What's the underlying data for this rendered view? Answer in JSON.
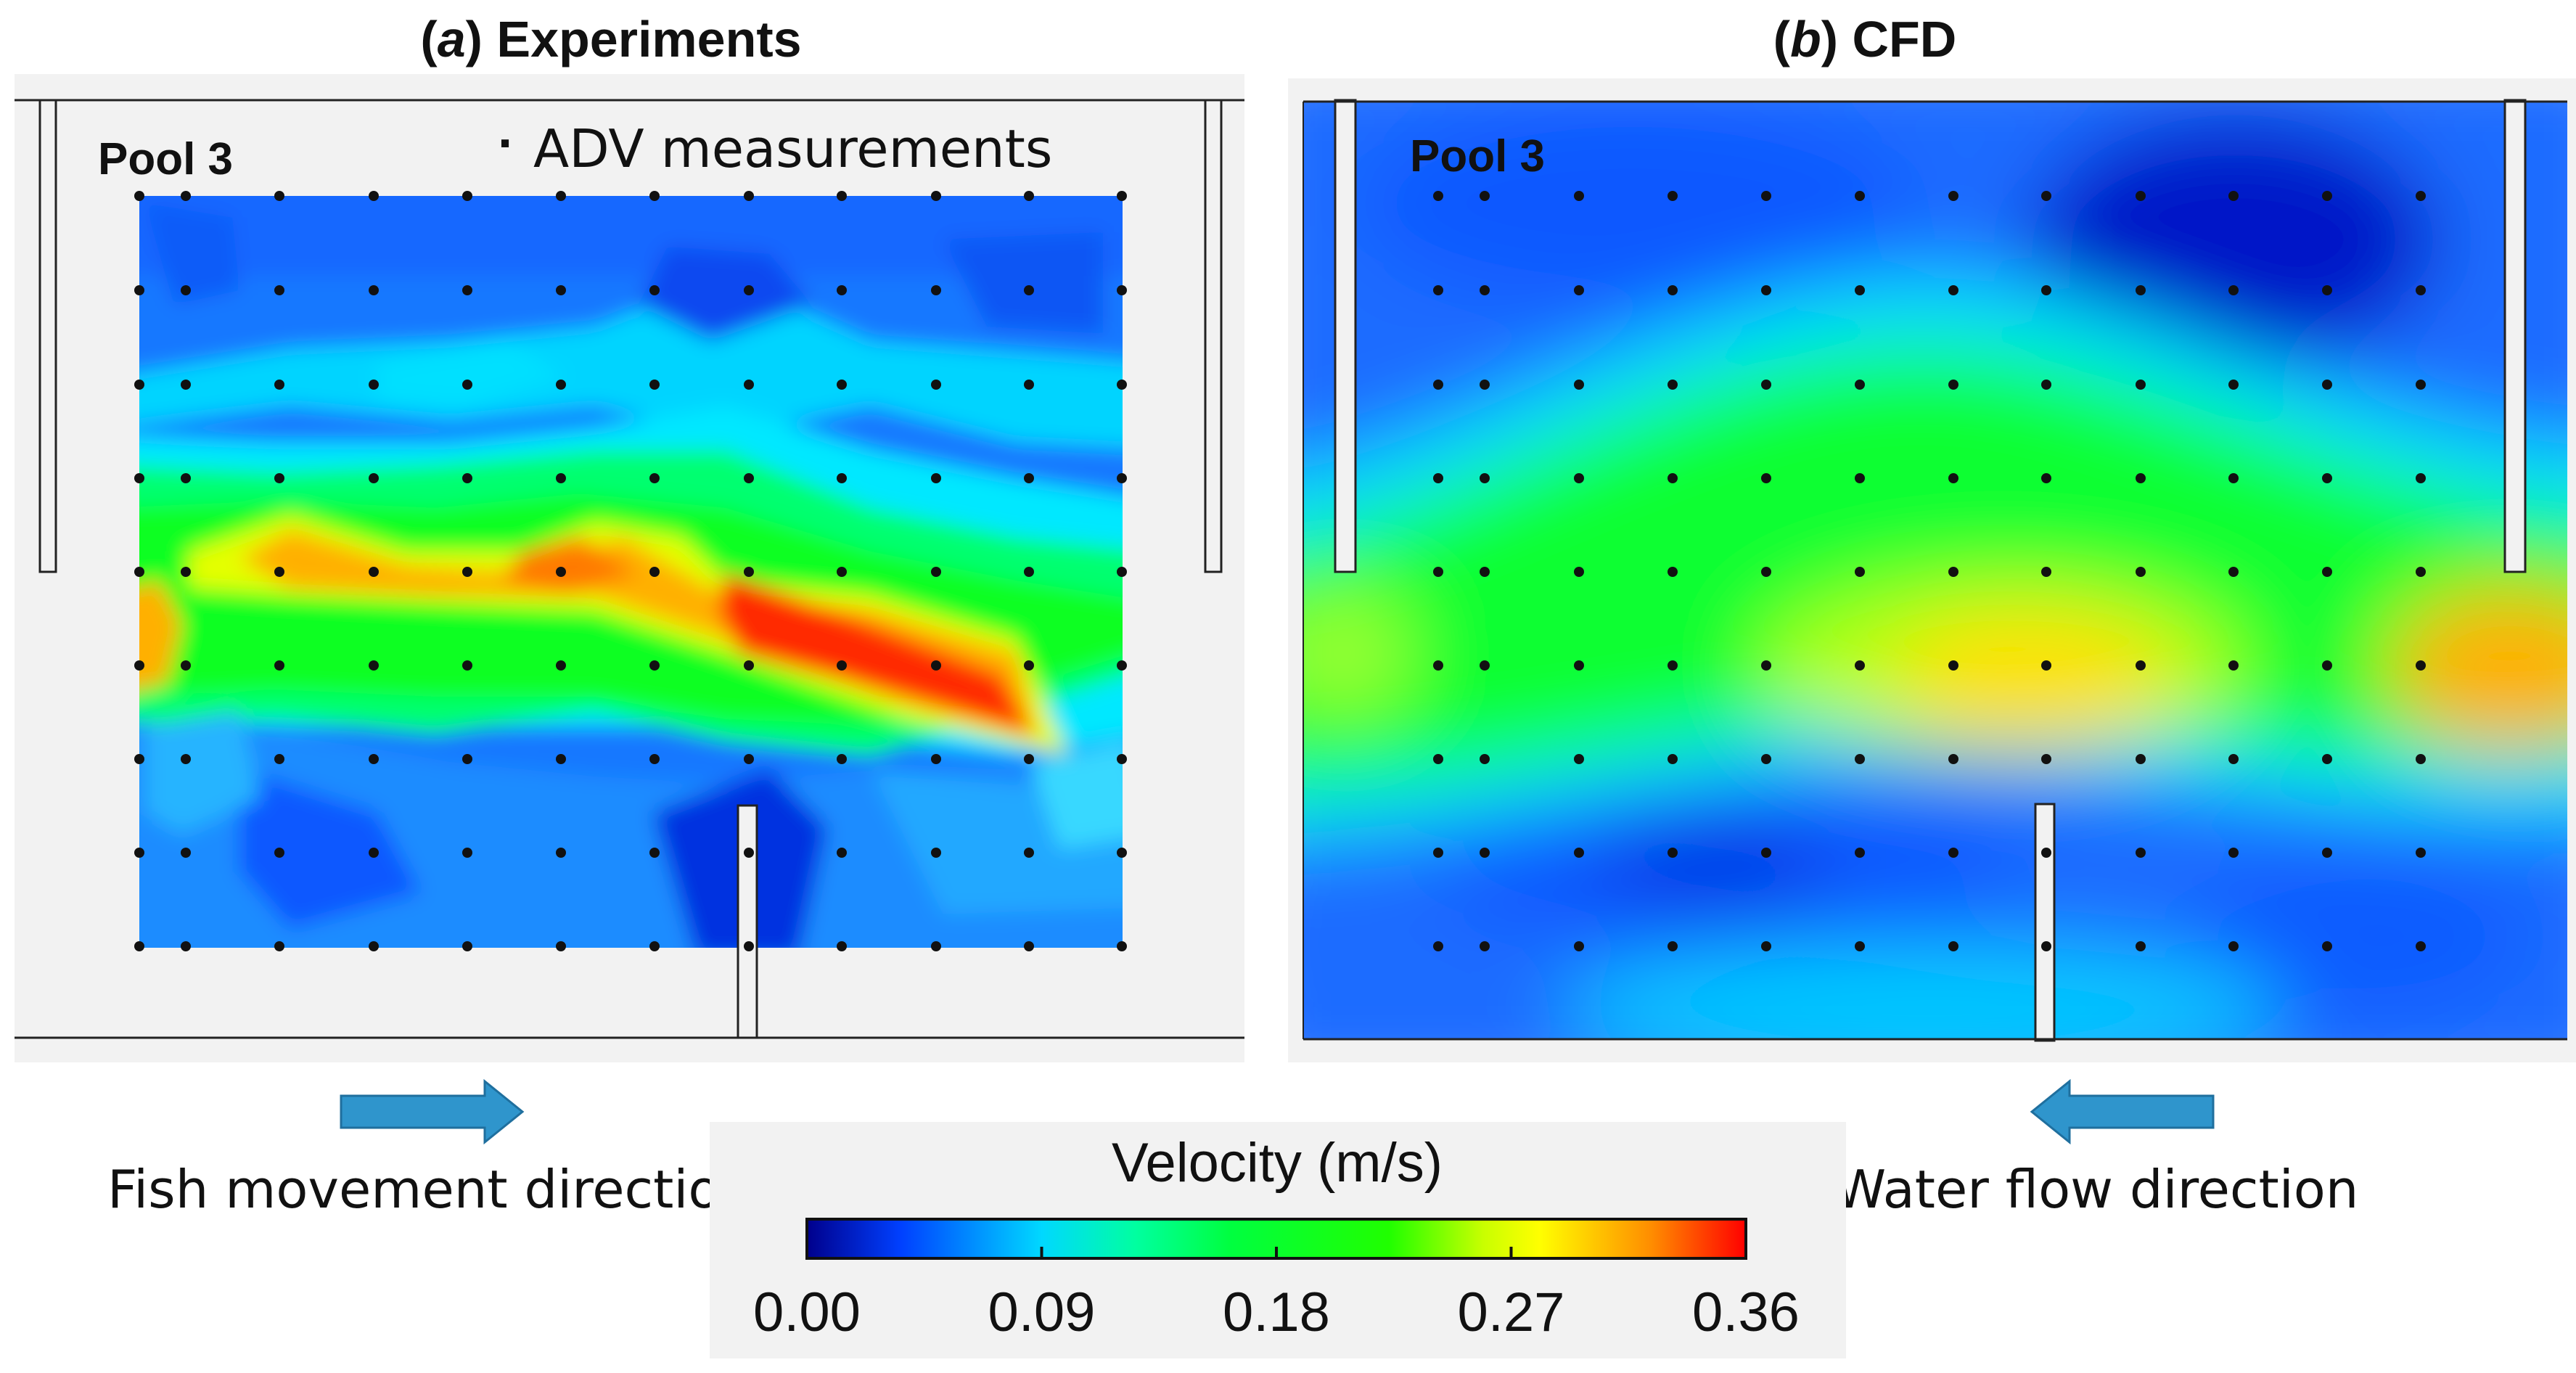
{
  "panels": [
    {
      "id": "a",
      "letter": "a",
      "title_rest": " Experiments",
      "pool_label": "Pool 3",
      "legend_marker": "·",
      "legend_text": "ADV measurements"
    },
    {
      "id": "b",
      "letter": "b",
      "title_rest": " CFD",
      "pool_label": "Pool 3"
    }
  ],
  "arrows": {
    "fish": {
      "label": "Fish movement direction",
      "direction": "right"
    },
    "water": {
      "label": "Water flow direction",
      "direction": "left"
    }
  },
  "colorbar": {
    "title": "Velocity (m/s)",
    "ticks": [
      "0.00",
      "0.09",
      "0.18",
      "0.27",
      "0.36"
    ],
    "min": 0.0,
    "max": 0.36
  },
  "colors": {
    "panel_bg": "#f2f2f2",
    "outline": "#222222",
    "arrow": "#2f95cc",
    "arrow_edge": "#1f6f9e",
    "colormap": [
      "#0000c8",
      "#0050ff",
      "#00c8ff",
      "#00ffd0",
      "#00ff40",
      "#30ff00",
      "#d8ff00",
      "#ffff00",
      "#ff9a00",
      "#ff0000"
    ]
  },
  "measurement_grid": {
    "columns": 12,
    "rows": 9
  }
}
